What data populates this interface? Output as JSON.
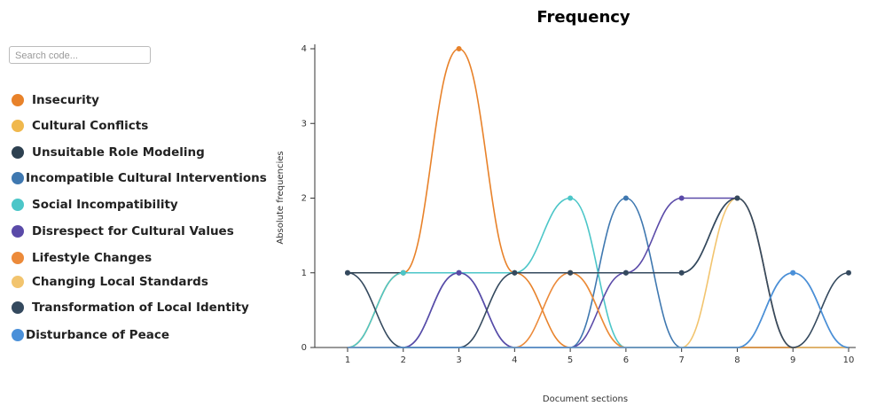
{
  "search_placeholder": "Search code...",
  "chart_data": {
    "type": "line",
    "title": "Frequency",
    "x_label": "Document sections",
    "y_label": "Absolute frequencies",
    "x": [
      1,
      2,
      3,
      4,
      5,
      6,
      7,
      8,
      9,
      10
    ],
    "xlim": [
      1,
      10
    ],
    "xticks": [
      1,
      2,
      3,
      4,
      5,
      6,
      7,
      8,
      9,
      10
    ],
    "ylim": [
      0,
      4
    ],
    "yticks": [
      0,
      1,
      2,
      3,
      4
    ],
    "series": [
      {
        "name": "Insecurity",
        "color": "#e8822a",
        "values": [
          0,
          1,
          4,
          1,
          0,
          0,
          0,
          0,
          0,
          0
        ]
      },
      {
        "name": "Cultural Conflicts",
        "color": "#f0b84d",
        "values": [
          0,
          1,
          1,
          1,
          1,
          0,
          0,
          0,
          0,
          0
        ]
      },
      {
        "name": "Unsuitable Role Modeling",
        "color": "#2d4050",
        "values": [
          1,
          1,
          1,
          1,
          1,
          1,
          1,
          2,
          0,
          0
        ]
      },
      {
        "name": "Incompatible Cultural Interventions",
        "color": "#3f78b0",
        "values": [
          0,
          0,
          1,
          0,
          0,
          2,
          0,
          0,
          1,
          0
        ]
      },
      {
        "name": "Social Incompatibility",
        "color": "#4cc6c8",
        "values": [
          0,
          1,
          1,
          1,
          2,
          0,
          0,
          0,
          0,
          0
        ]
      },
      {
        "name": "Disrespect for Cultural Values",
        "color": "#5a4aa8",
        "values": [
          0,
          0,
          1,
          0,
          0,
          1,
          2,
          2,
          0,
          0
        ]
      },
      {
        "name": "Lifestyle Changes",
        "color": "#ec8a3a",
        "values": [
          0,
          0,
          0,
          0,
          1,
          0,
          0,
          0,
          0,
          0
        ]
      },
      {
        "name": "Changing Local Standards",
        "color": "#f2c46e",
        "values": [
          0,
          0,
          0,
          0,
          0,
          0,
          0,
          2,
          0,
          0
        ]
      },
      {
        "name": "Transformation of Local Identity",
        "color": "#34495e",
        "values": [
          1,
          0,
          0,
          1,
          1,
          1,
          1,
          2,
          0,
          1
        ]
      },
      {
        "name": "Disturbance of Peace",
        "color": "#4a90d9",
        "values": [
          0,
          0,
          0,
          0,
          0,
          0,
          0,
          0,
          1,
          0
        ]
      }
    ]
  }
}
